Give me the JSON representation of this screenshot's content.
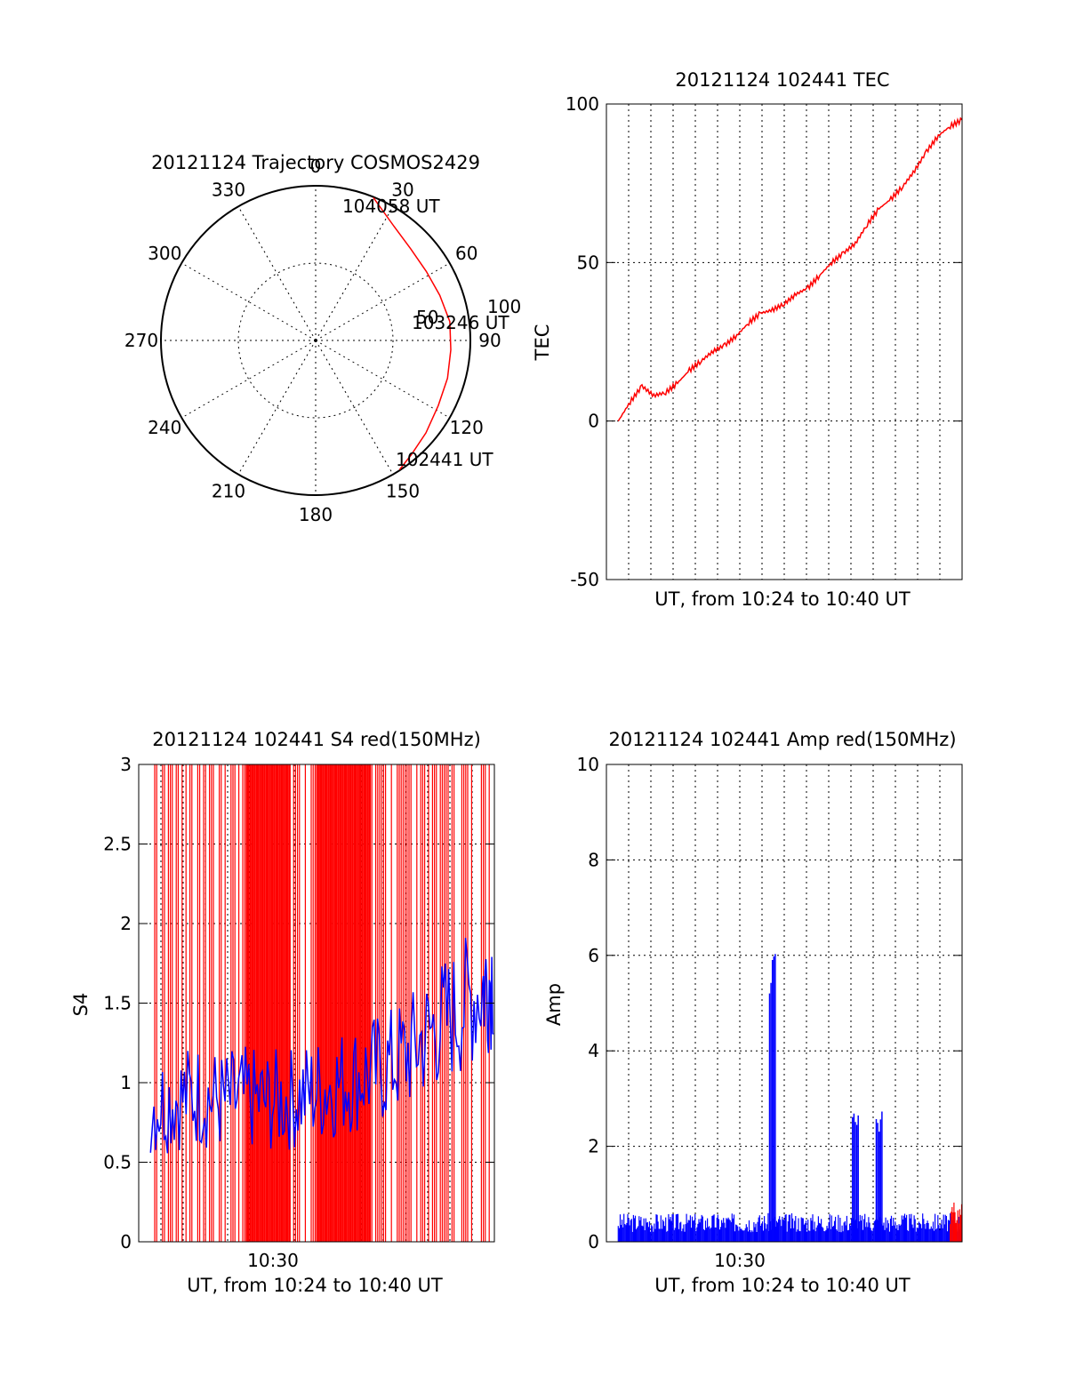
{
  "chart_data": [
    {
      "id": "trajectory",
      "type": "scatter",
      "title": "20121124 Trajectory COSMOS2429",
      "projection": "polar",
      "azimuth_ticks": [
        "0",
        "30",
        "60",
        "90",
        "120",
        "150",
        "180",
        "210",
        "240",
        "270",
        "300",
        "330"
      ],
      "ring_labels": [
        "50",
        "100"
      ],
      "series": [
        {
          "color": "#ff0000",
          "points": [
            {
              "azimuth": 22,
              "zenith": 91
            },
            {
              "azimuth": 34,
              "zenith": 82
            },
            {
              "azimuth": 46,
              "zenith": 78
            },
            {
              "azimuth": 58,
              "zenith": 77
            },
            {
              "azimuth": 70,
              "zenith": 78
            },
            {
              "azimuth": 82,
              "zenith": 80
            },
            {
              "azimuth": 94,
              "zenith": 80
            },
            {
              "azimuth": 106,
              "zenith": 81
            },
            {
              "azimuth": 118,
              "zenith": 82
            },
            {
              "azimuth": 130,
              "zenith": 85
            },
            {
              "azimuth": 140,
              "zenith": 88
            },
            {
              "azimuth": 147,
              "zenith": 91
            }
          ]
        }
      ],
      "annotations": [
        "104058 UT",
        "103246 UT",
        "102441 UT"
      ]
    },
    {
      "id": "tec",
      "type": "line",
      "title": "20121124 102441 TEC",
      "xlabel": "UT, from 10:24 to 10:40 UT",
      "ylabel": "TEC",
      "ylim": [
        -50,
        100
      ],
      "yticks": [
        "-50",
        "0",
        "50",
        "100"
      ],
      "grid": true,
      "series": [
        {
          "color": "#ff0000",
          "points": [
            [
              10.41,
              0
            ],
            [
              10.42,
              6
            ],
            [
              10.43,
              11
            ],
            [
              10.44,
              8
            ],
            [
              10.45,
              9
            ],
            [
              10.46,
              12
            ],
            [
              10.47,
              16
            ],
            [
              10.48,
              19
            ],
            [
              10.49,
              22
            ],
            [
              10.5,
              24
            ],
            [
              10.51,
              27
            ],
            [
              10.52,
              31
            ],
            [
              10.53,
              34
            ],
            [
              10.54,
              35
            ],
            [
              10.55,
              37
            ],
            [
              10.56,
              40
            ],
            [
              10.57,
              42
            ],
            [
              10.58,
              46
            ],
            [
              10.59,
              50
            ],
            [
              10.6,
              53
            ],
            [
              10.61,
              56
            ],
            [
              10.62,
              62
            ],
            [
              10.63,
              67
            ],
            [
              10.64,
              70
            ],
            [
              10.65,
              74
            ],
            [
              10.66,
              79
            ],
            [
              10.67,
              85
            ],
            [
              10.68,
              90
            ],
            [
              10.69,
              93
            ],
            [
              10.7,
              95
            ]
          ]
        }
      ]
    },
    {
      "id": "s4",
      "type": "line",
      "title": "20121124 102441 S4 red(150MHz)",
      "xlabel": "UT, from 10:24 to 10:40 UT",
      "ylabel": "S4",
      "ylim": [
        0,
        3
      ],
      "yticks": [
        "0",
        "0.5",
        "1",
        "1.5",
        "2",
        "2.5",
        "3"
      ],
      "xticks": [
        "10:30"
      ],
      "grid": true,
      "series": [
        {
          "color": "#ff0000",
          "style": "dense vertical spikes to the top of the plot"
        },
        {
          "color": "#0000ff",
          "points": [
            [
              10.41,
              0.85
            ],
            [
              10.43,
              0.9
            ],
            [
              10.45,
              0.92
            ],
            [
              10.47,
              0.88
            ],
            [
              10.49,
              0.9
            ],
            [
              10.51,
              0.88
            ],
            [
              10.53,
              0.9
            ],
            [
              10.55,
              0.95
            ],
            [
              10.57,
              1.0
            ],
            [
              10.59,
              1.05
            ],
            [
              10.61,
              1.1
            ],
            [
              10.63,
              1.2
            ],
            [
              10.65,
              1.35
            ],
            [
              10.67,
              1.45
            ],
            [
              10.69,
              1.6
            ],
            [
              10.7,
              1.7
            ]
          ]
        }
      ]
    },
    {
      "id": "amp",
      "type": "line",
      "title": "20121124 102441 Amp red(150MHz)",
      "xlabel": "UT, from 10:24 to 10:40 UT",
      "ylabel": "Amp",
      "ylim": [
        0,
        10
      ],
      "yticks": [
        "0",
        "2",
        "4",
        "6",
        "8",
        "10"
      ],
      "xticks": [
        "10:30"
      ],
      "grid": true,
      "series": [
        {
          "color": "#0000ff",
          "baseline": 0.4,
          "spikes": [
            {
              "x": 10.54,
              "y": 6.1
            },
            {
              "x": 10.61,
              "y": 3.0
            },
            {
              "x": 10.63,
              "y": 2.8
            }
          ]
        },
        {
          "color": "#ff0000",
          "baseline": 0.6
        }
      ]
    }
  ]
}
